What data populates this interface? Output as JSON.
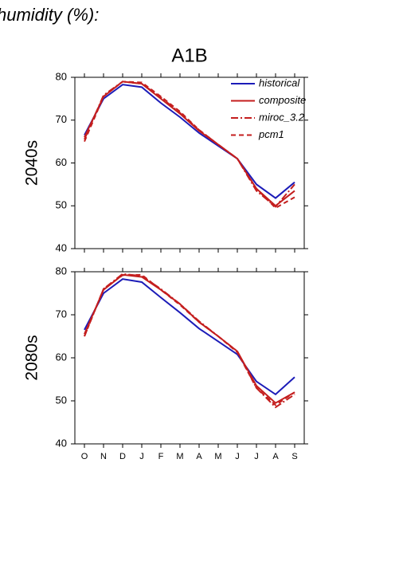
{
  "header": {
    "title": "humidity (%):"
  },
  "chart_data": [
    {
      "type": "line",
      "title": "A1B",
      "ylabel": "2040s",
      "ylim": [
        40,
        80
      ],
      "yticks": [
        40,
        50,
        60,
        70,
        80
      ],
      "legend": "upper right",
      "series": [
        {
          "name": "historical",
          "color": "#1c1cb8",
          "dash": "none",
          "values": [
            66.5,
            75,
            78.3,
            77.7,
            74,
            70.7,
            67,
            64,
            61,
            55,
            51.8,
            55.5
          ]
        },
        {
          "name": "composite",
          "color": "#c41e1e",
          "dash": "none",
          "values": [
            66,
            75.5,
            79,
            78.5,
            75,
            71.5,
            67.5,
            64.3,
            61,
            54,
            50,
            53.5
          ]
        },
        {
          "name": "miroc_3.2",
          "color": "#c41e1e",
          "dash": "9,3,2,3",
          "values": [
            65.5,
            75.8,
            79,
            78.5,
            75.3,
            71.7,
            67.7,
            64.3,
            61,
            53.5,
            49.8,
            55
          ]
        },
        {
          "name": "pcm1",
          "color": "#c41e1e",
          "dash": "6,4",
          "values": [
            65,
            75.5,
            79,
            78.8,
            75.5,
            72,
            67.7,
            64.3,
            61,
            54,
            49.5,
            52
          ]
        }
      ]
    },
    {
      "type": "line",
      "ylabel": "2080s",
      "ylim": [
        40,
        80
      ],
      "yticks": [
        40,
        50,
        60,
        70,
        80
      ],
      "categories": [
        "O",
        "N",
        "D",
        "J",
        "F",
        "M",
        "A",
        "M",
        "J",
        "J",
        "A",
        "S"
      ],
      "series": [
        {
          "color": "#1c1cb8",
          "dash": "none",
          "values": [
            66.5,
            75,
            78.3,
            77.6,
            74,
            70.5,
            66.8,
            63.8,
            60.8,
            54.5,
            51.5,
            55.5
          ]
        },
        {
          "color": "#c41e1e",
          "dash": "none",
          "values": [
            65.5,
            75.8,
            79.3,
            78.8,
            75.8,
            72.5,
            68.3,
            65,
            61.5,
            53.5,
            49.5,
            52
          ]
        },
        {
          "color": "#c41e1e",
          "dash": "9,3,2,3",
          "values": [
            65,
            76,
            79.5,
            79,
            76,
            72.5,
            68.5,
            65,
            61.5,
            53,
            48.5,
            51.5
          ]
        },
        {
          "color": "#c41e1e",
          "dash": "6,4",
          "values": [
            65,
            76,
            79.2,
            79.3,
            75.8,
            72.3,
            68.3,
            65,
            61.3,
            53,
            49,
            52
          ]
        }
      ]
    }
  ]
}
